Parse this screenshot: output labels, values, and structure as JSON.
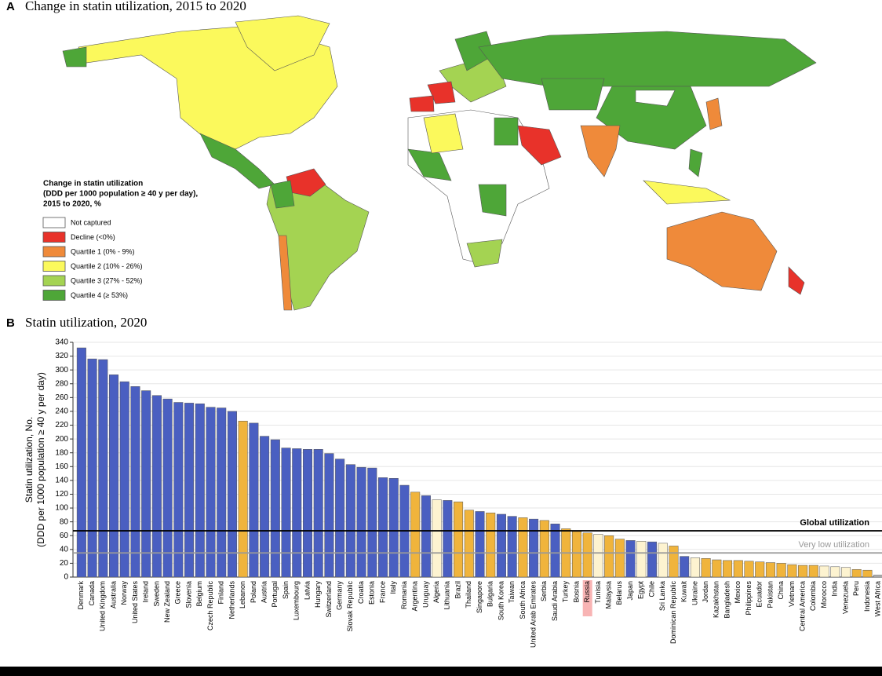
{
  "panel_a": {
    "label": "A",
    "title": "Change in statin utilization, 2015 to 2020",
    "legend": {
      "title": [
        "Change in statin utilization",
        "(DDD per 1000 population ≥ 40 y per day),",
        "2015 to 2020, %"
      ],
      "items": [
        {
          "label": "Not captured",
          "color": "#ffffff"
        },
        {
          "label": "Decline (<0%)",
          "color": "#e8322a"
        },
        {
          "label": "Quartile 1 (0% - 9%)",
          "color": "#ef8a3a"
        },
        {
          "label": "Quartile 2 (10% - 26%)",
          "color": "#fbf95c"
        },
        {
          "label": "Quartile 3 (27% - 52%)",
          "color": "#a4d352"
        },
        {
          "label": "Quartile 4 (≥ 53%)",
          "color": "#4ea638"
        }
      ]
    }
  },
  "chart_data": {
    "type": "bar",
    "panel_label": "B",
    "title": "Statin utilization, 2020",
    "y_label": [
      "Statin utilization, No.",
      "(DDD per 1000 population ≥ 40 y per day)"
    ],
    "categories": [
      "Denmark",
      "Canada",
      "United Kingdom",
      "Australia",
      "Norway",
      "United States",
      "Ireland",
      "Sweden",
      "New Zealand",
      "Greece",
      "Slovenia",
      "Belgium",
      "Czech Republic",
      "Finland",
      "Netherlands",
      "Lebanon",
      "Poland",
      "Austria",
      "Portugal",
      "Spain",
      "Luxembourg",
      "Latvia",
      "Hungary",
      "Switzerland",
      "Germany",
      "Slovak Republic",
      "Croatia",
      "Estonia",
      "France",
      "Italy",
      "Romania",
      "Argentina",
      "Uruguay",
      "Algeria",
      "Lithuania",
      "Brazil",
      "Thailand",
      "Singapore",
      "Bulgaria",
      "South Korea",
      "Taiwan",
      "South Africa",
      "United Arab Emirates",
      "Serbia",
      "Saudi Arabia",
      "Turkey",
      "Bosnia",
      "Russia",
      "Tunisia",
      "Malaysia",
      "Belarus",
      "Japan",
      "Egypt",
      "Chile",
      "Sri Lanka",
      "Dominican Republic",
      "Kuwait",
      "Ukraine",
      "Jordan",
      "Kazakhstan",
      "Bangladesh",
      "Mexico",
      "Philippines",
      "Ecuador",
      "Pakistan",
      "China",
      "Vietnam",
      "Central America",
      "Colombia",
      "Morocco",
      "India",
      "Venezuela",
      "Peru",
      "Indonesia",
      "West Africa"
    ],
    "values": [
      332,
      316,
      315,
      293,
      283,
      276,
      270,
      263,
      258,
      253,
      252,
      251,
      246,
      245,
      240,
      226,
      223,
      204,
      199,
      187,
      186,
      185,
      185,
      179,
      171,
      163,
      159,
      158,
      144,
      143,
      133,
      123,
      118,
      112,
      111,
      109,
      97,
      95,
      93,
      91,
      88,
      86,
      84,
      82,
      77,
      70,
      66,
      64,
      62,
      60,
      55,
      53,
      52,
      51,
      49,
      45,
      30,
      28,
      27,
      25,
      24,
      24,
      23,
      22,
      21,
      20,
      18,
      17,
      17,
      16,
      15,
      14,
      11,
      10,
      3
    ],
    "colors": [
      "#4a5fc1",
      "#4a5fc1",
      "#4a5fc1",
      "#4a5fc1",
      "#4a5fc1",
      "#4a5fc1",
      "#4a5fc1",
      "#4a5fc1",
      "#4a5fc1",
      "#4a5fc1",
      "#4a5fc1",
      "#4a5fc1",
      "#4a5fc1",
      "#4a5fc1",
      "#4a5fc1",
      "#f0b43c",
      "#4a5fc1",
      "#4a5fc1",
      "#4a5fc1",
      "#4a5fc1",
      "#4a5fc1",
      "#4a5fc1",
      "#4a5fc1",
      "#4a5fc1",
      "#4a5fc1",
      "#4a5fc1",
      "#4a5fc1",
      "#4a5fc1",
      "#4a5fc1",
      "#4a5fc1",
      "#4a5fc1",
      "#f0b43c",
      "#4a5fc1",
      "#fdf3d0",
      "#4a5fc1",
      "#f0b43c",
      "#f0b43c",
      "#4a5fc1",
      "#f0b43c",
      "#4a5fc1",
      "#4a5fc1",
      "#f0b43c",
      "#4a5fc1",
      "#f0b43c",
      "#4a5fc1",
      "#f0b43c",
      "#f0b43c",
      "#f0b43c",
      "#fdf3d0",
      "#f0b43c",
      "#f0b43c",
      "#4a5fc1",
      "#fdf3d0",
      "#4a5fc1",
      "#fdf3d0",
      "#f0b43c",
      "#4a5fc1",
      "#fdf3d0",
      "#f0b43c",
      "#f0b43c",
      "#f0b43c",
      "#f0b43c",
      "#f0b43c",
      "#f0b43c",
      "#f0b43c",
      "#f0b43c",
      "#f0b43c",
      "#f0b43c",
      "#f0b43c",
      "#fdf3d0",
      "#fdf3d0",
      "#fdf3d0",
      "#f0b43c",
      "#f0b43c",
      "#bbbbbb"
    ],
    "highlight_index": 47,
    "reference_lines": [
      {
        "label": "Global utilization",
        "value": 67,
        "color": "#000000"
      },
      {
        "label": "Very low utilization",
        "value": 35,
        "color": "#999999"
      }
    ],
    "ylim": [
      0,
      340
    ],
    "yticks": [
      0,
      20,
      40,
      60,
      80,
      100,
      120,
      140,
      160,
      180,
      200,
      220,
      240,
      260,
      280,
      300,
      320,
      340
    ],
    "grid": true
  }
}
